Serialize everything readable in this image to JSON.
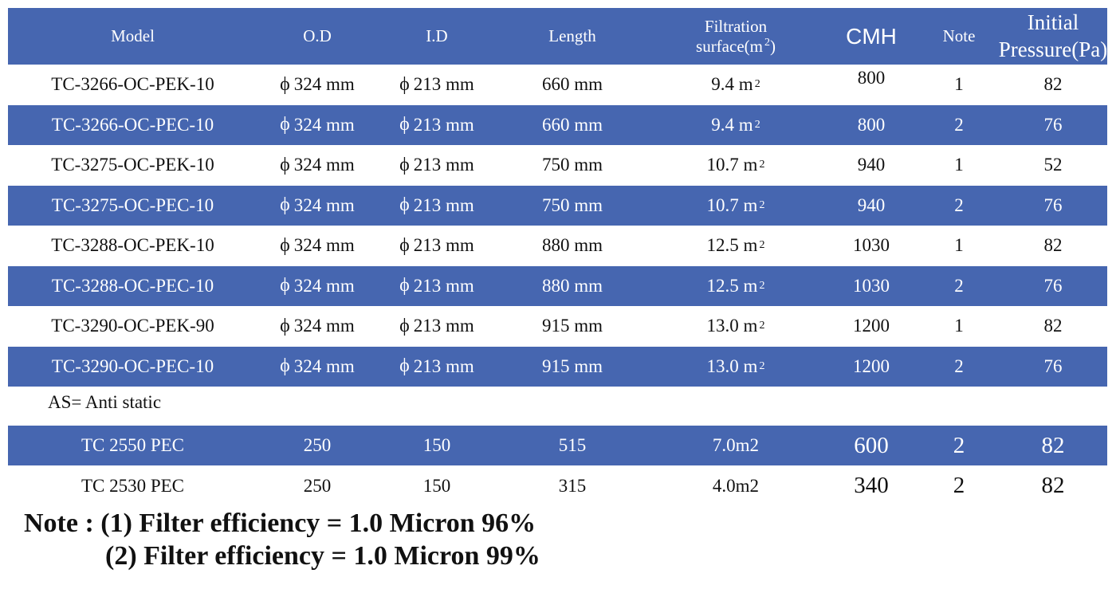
{
  "header": {
    "model": "Model",
    "od": "O.D",
    "id": "I.D",
    "length": "Length",
    "filtration_line1": "Filtration",
    "filtration_line2": "surface(m",
    "filtration_sup": "2",
    "filtration_close": ")",
    "cmh": "CMH",
    "note": "Note",
    "pressure_line1": "Initial",
    "pressure_line2": "Pressure(Pa)"
  },
  "rows": [
    {
      "model": "TC-3266-OC-PEK-10",
      "od": "324 mm",
      "id": "213 mm",
      "length": "660 mm",
      "surface": "9.4 m",
      "cmh": "800",
      "note": "1",
      "pressure": "82"
    },
    {
      "model": "TC-3266-OC-PEC-10",
      "od": "324 mm",
      "id": "213 mm",
      "length": "660 mm",
      "surface": "9.4 m",
      "cmh": "800",
      "note": "2",
      "pressure": "76"
    },
    {
      "model": "TC-3275-OC-PEK-10",
      "od": "324 mm",
      "id": "213 mm",
      "length": "750 mm",
      "surface": "10.7 m",
      "cmh": "940",
      "note": "1",
      "pressure": "52"
    },
    {
      "model": "TC-3275-OC-PEC-10",
      "od": "324 mm",
      "id": "213 mm",
      "length": "750 mm",
      "surface": "10.7 m",
      "cmh": "940",
      "note": "2",
      "pressure": "76"
    },
    {
      "model": "TC-3288-OC-PEK-10",
      "od": "324 mm",
      "id": "213 mm",
      "length": "880 mm",
      "surface": "12.5 m",
      "cmh": "1030",
      "note": "1",
      "pressure": "82"
    },
    {
      "model": "TC-3288-OC-PEC-10",
      "od": "324 mm",
      "id": "213 mm",
      "length": "880 mm",
      "surface": "12.5 m",
      "cmh": "1030",
      "note": "2",
      "pressure": "76"
    },
    {
      "model": "TC-3290-OC-PEK-90",
      "od": "324 mm",
      "id": "213 mm",
      "length": "915 mm",
      "surface": "13.0 m",
      "cmh": "1200",
      "note": "1",
      "pressure": "82"
    },
    {
      "model": "TC-3290-OC-PEC-10",
      "od": "324 mm",
      "id": "213 mm",
      "length": "915 mm",
      "surface": "13.0 m",
      "cmh": "1200",
      "note": "2",
      "pressure": "76"
    }
  ],
  "symbols": {
    "phi": "ϕ",
    "squared": "2"
  },
  "as_note": "AS= Anti static",
  "extra_rows": [
    {
      "model": "TC 2550 PEC",
      "od": "250",
      "id": "150",
      "length": "515",
      "surface": "7.0m2",
      "cmh": "600",
      "note": "2",
      "pressure": "82"
    },
    {
      "model": "TC 2530 PEC",
      "od": "250",
      "id": "150",
      "length": "315",
      "surface": "4.0m2",
      "cmh": "340",
      "note": "2",
      "pressure": "82"
    }
  ],
  "notes": {
    "line1": "Note : (1) Filter efficiency = 1.0 Micron 96%",
    "line2": "(2) Filter efficiency = 1.0 Micron 99%"
  },
  "colors": {
    "band_blue": "#4666b0",
    "text_dark": "#111111",
    "text_light": "#ffffff"
  }
}
